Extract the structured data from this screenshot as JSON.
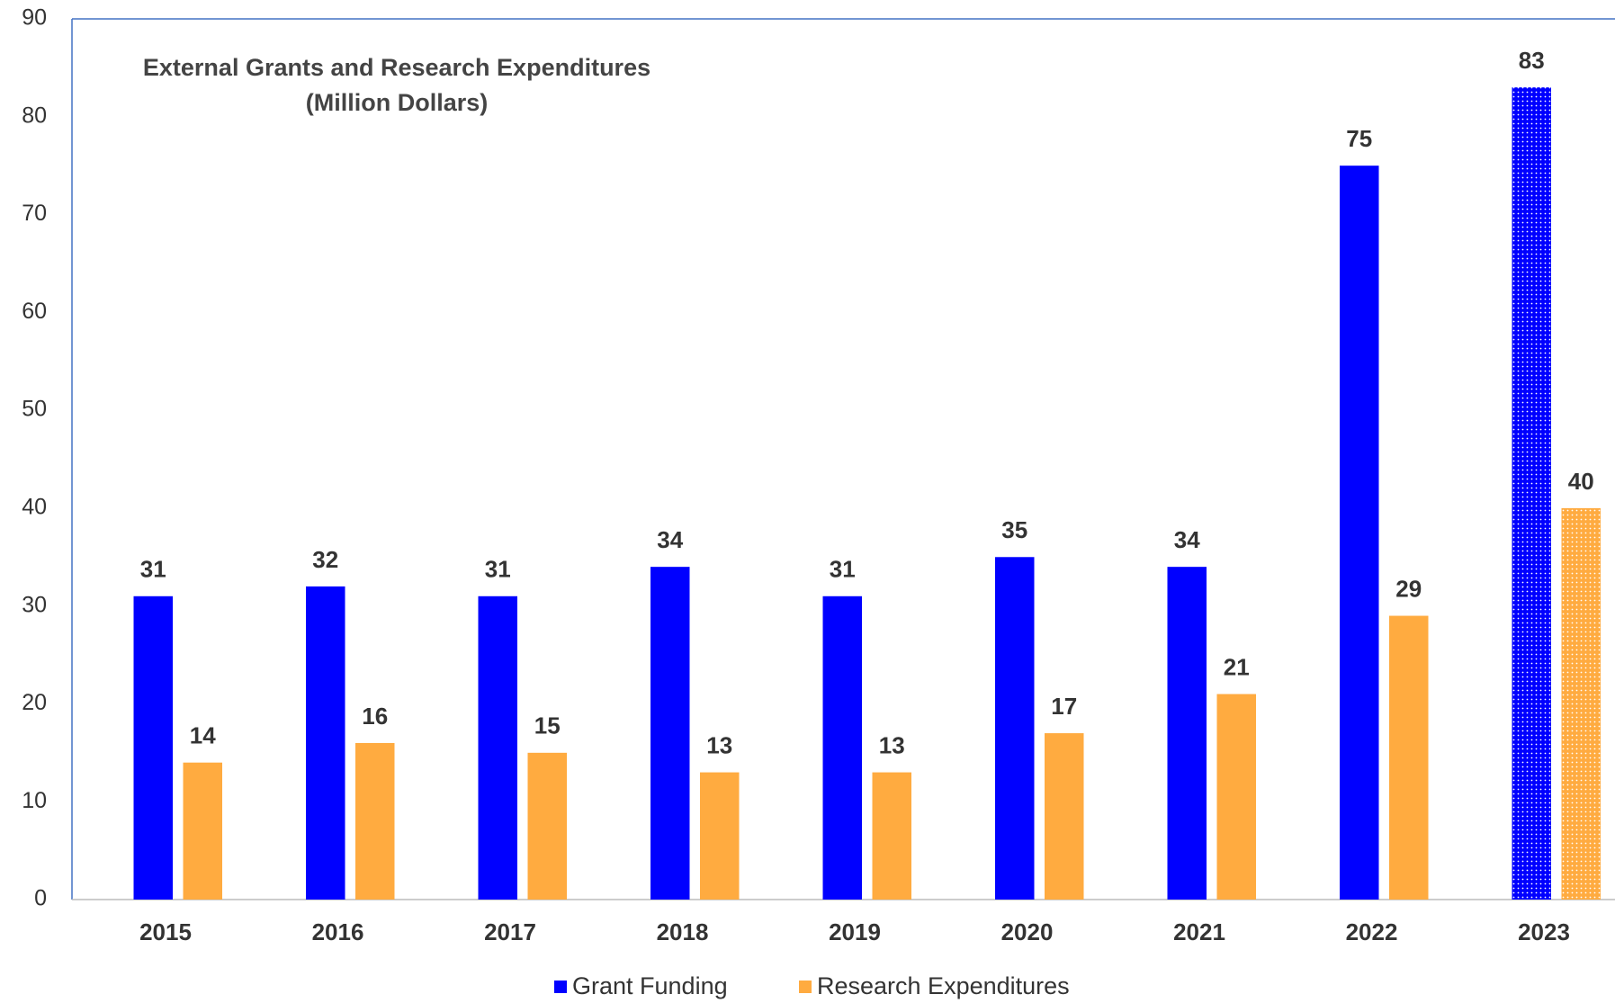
{
  "chart_data": {
    "type": "bar",
    "title": "External Grants and Research Expenditures",
    "subtitle": "(Million Dollars)",
    "categories": [
      "2015",
      "2016",
      "2017",
      "2018",
      "2019",
      "2020",
      "2021",
      "2022",
      "2023"
    ],
    "series": [
      {
        "name": "Grant Funding",
        "color": "#0000ff",
        "values": [
          31,
          32,
          31,
          34,
          31,
          35,
          34,
          75,
          83
        ]
      },
      {
        "name": "Research Expenditures",
        "color": "#ffab40",
        "values": [
          14,
          16,
          15,
          13,
          13,
          17,
          21,
          29,
          40
        ]
      }
    ],
    "ylim": [
      0,
      90
    ],
    "yticks": [
      0,
      10,
      20,
      30,
      40,
      50,
      60,
      70,
      80,
      90
    ],
    "grid": false,
    "legend": "bottom",
    "dotted_last": true
  }
}
